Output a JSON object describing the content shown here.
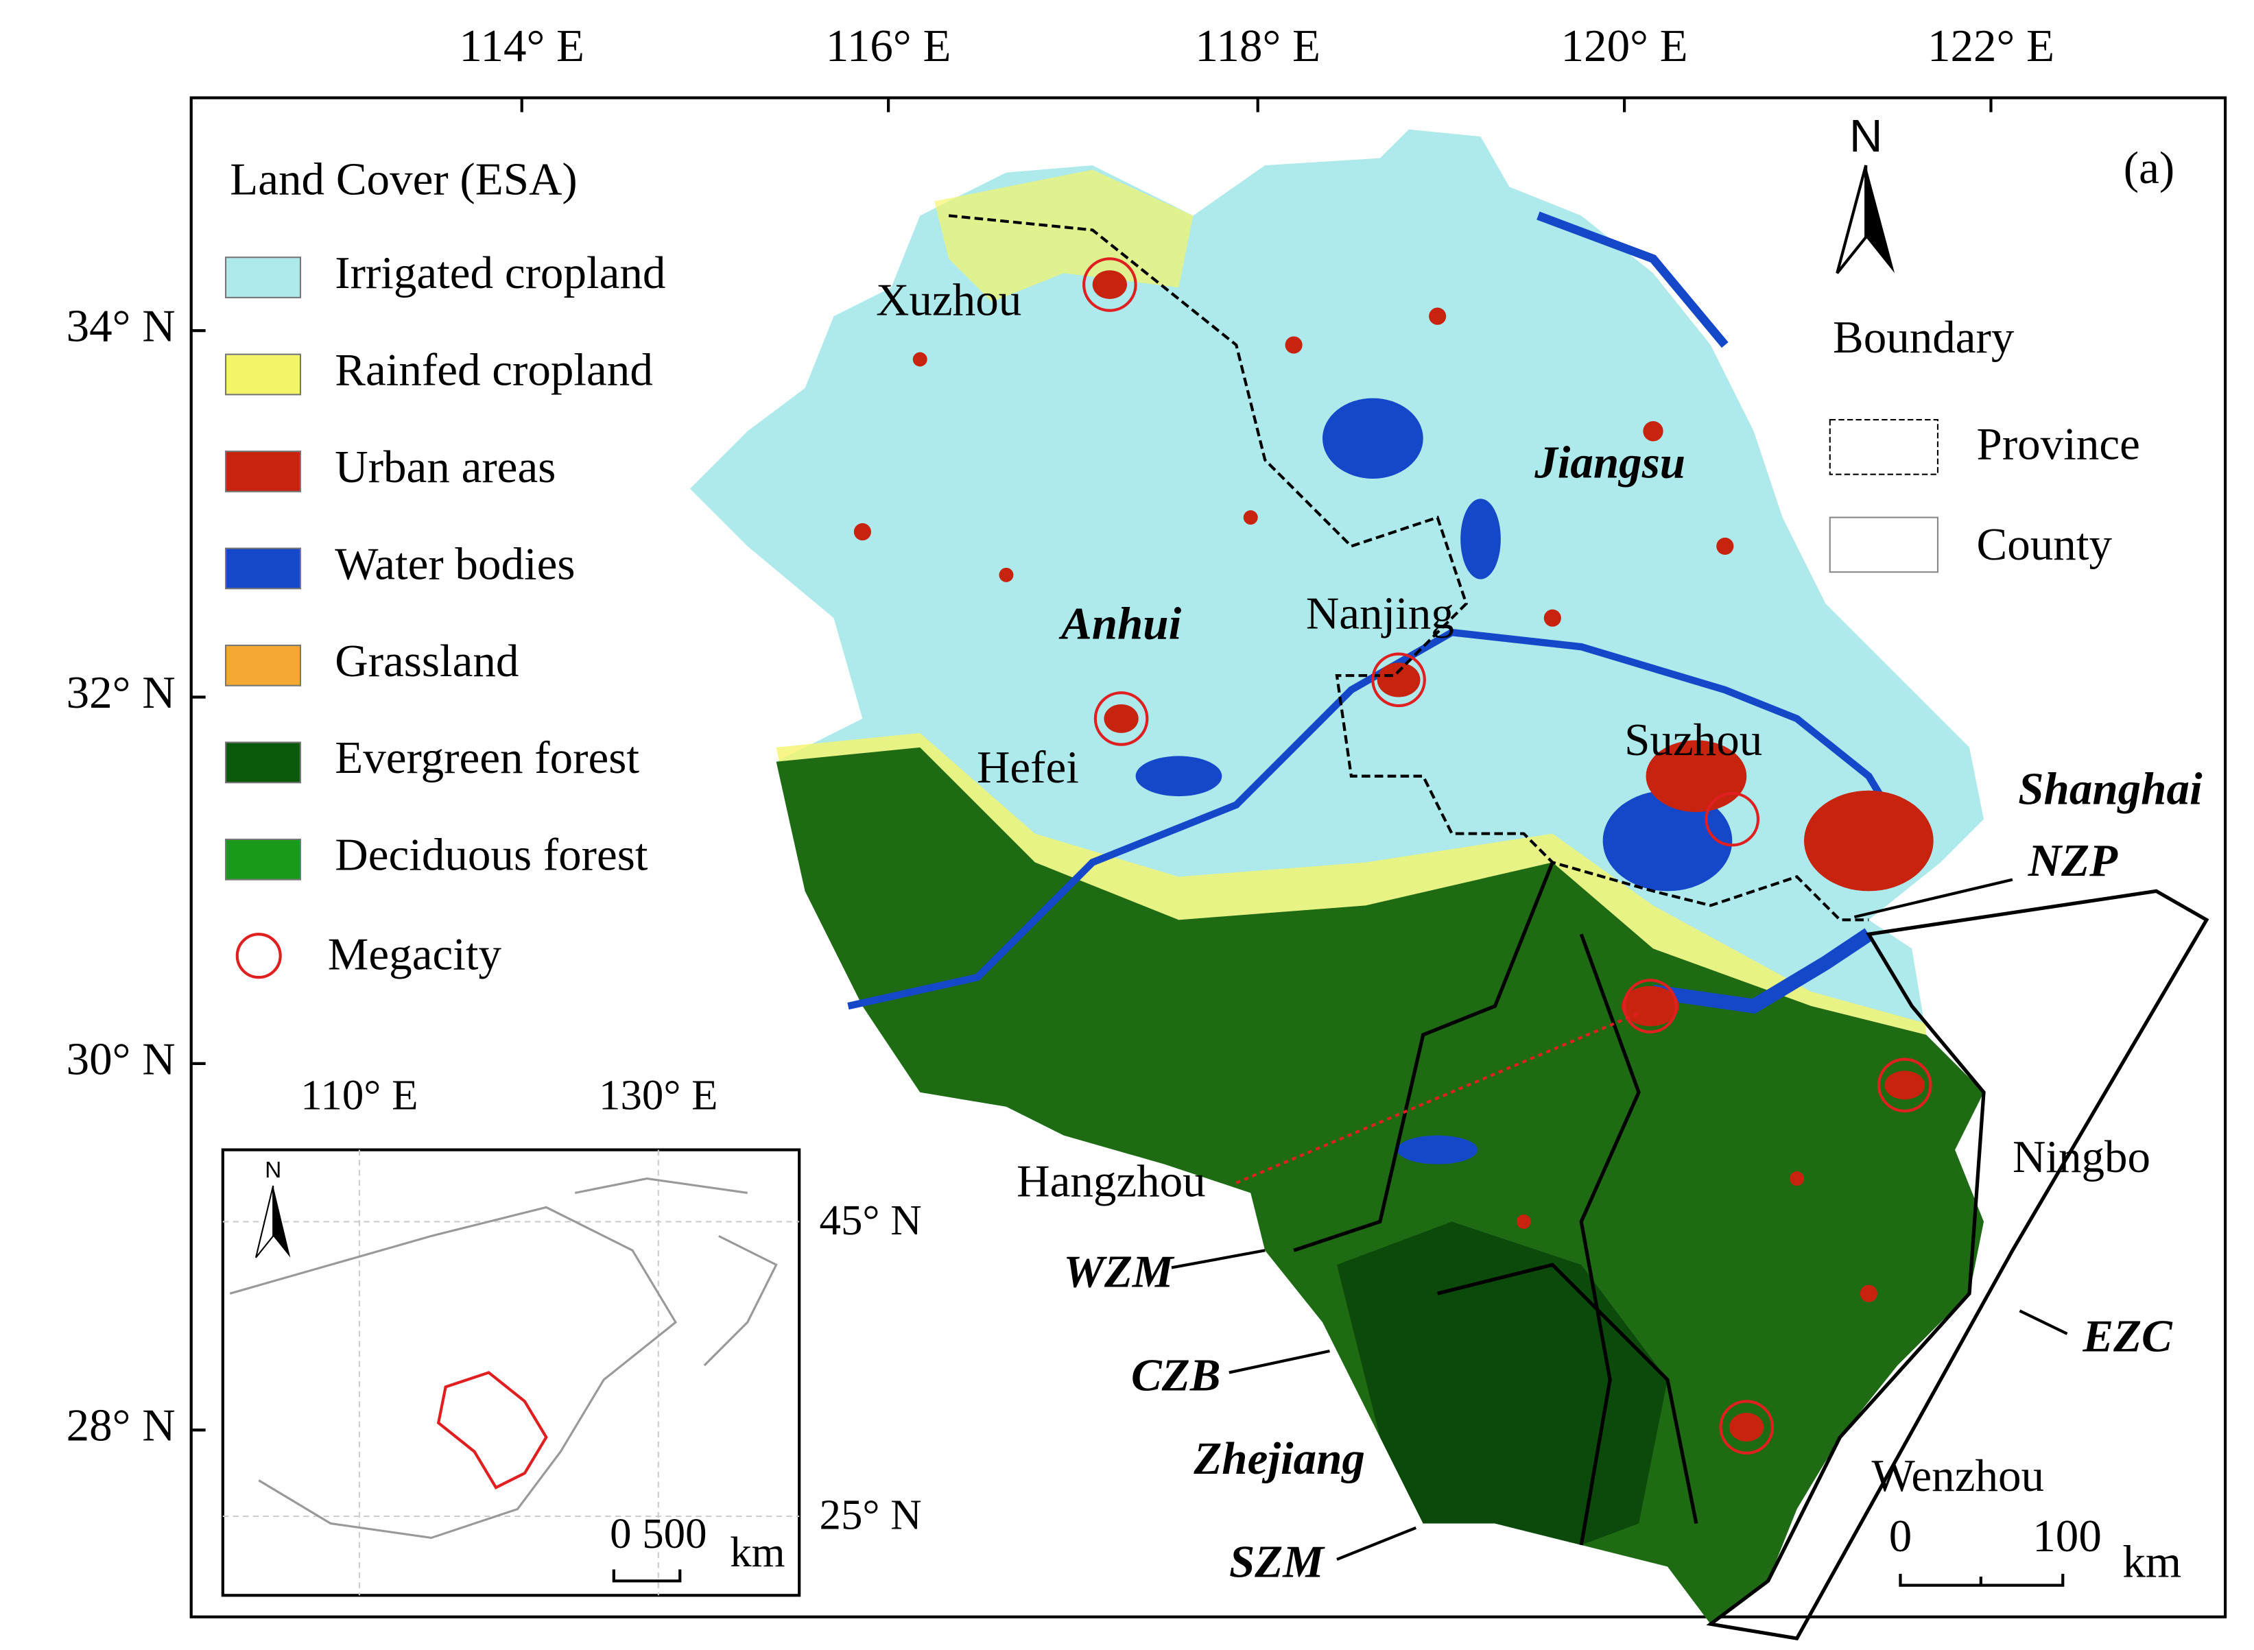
{
  "map": {
    "panel_label": "(a)",
    "north": "N",
    "lon_ticks": [
      "114° E",
      "116° E",
      "118° E",
      "120° E",
      "122° E"
    ],
    "lat_ticks": [
      "34° N",
      "32° N",
      "30° N",
      "28° N"
    ],
    "legend": {
      "title": "Land Cover (ESA)",
      "items": [
        {
          "label": "Irrigated cropland",
          "color": "#aee9ec"
        },
        {
          "label": "Rainfed cropland",
          "color": "#f5f56a"
        },
        {
          "label": "Urban areas",
          "color": "#c8230f"
        },
        {
          "label": "Water bodies",
          "color": "#1448c8"
        },
        {
          "label": "Grassland",
          "color": "#f5a832"
        },
        {
          "label": "Evergreen forest",
          "color": "#0b5a0b"
        },
        {
          "label": "Deciduous forest",
          "color": "#1a9a1a"
        }
      ],
      "megacity": "Megacity"
    },
    "boundary": {
      "title": "Boundary",
      "items": [
        "Province",
        "County"
      ]
    },
    "cities": [
      "Xuzhou",
      "Nanjing",
      "Hefei",
      "Suzhou",
      "Hangzhou",
      "Ningbo",
      "Wenzhou"
    ],
    "provinces": [
      "Jiangsu",
      "Anhui",
      "Zhejiang",
      "Shanghai"
    ],
    "regions": [
      "NZP",
      "WZM",
      "CZB",
      "SZM",
      "EZC"
    ],
    "scale_bar": {
      "labels": [
        "0",
        "100"
      ],
      "unit": "km"
    },
    "inset": {
      "lon_ticks": [
        "110° E",
        "130° E"
      ],
      "lat_ticks": [
        "45° N",
        "25° N"
      ],
      "north": "N",
      "scale_label": "0 500",
      "unit": "km"
    }
  }
}
